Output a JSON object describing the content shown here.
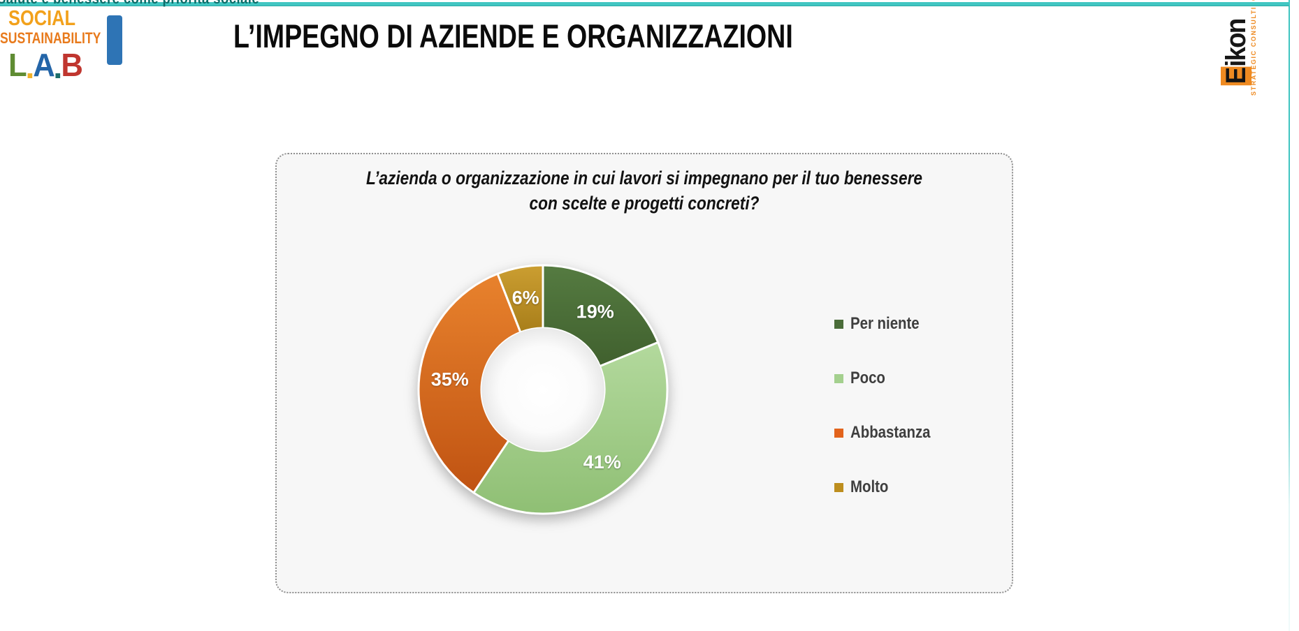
{
  "top_strip": {
    "clipped_text": "Salute e benessere come priorità sociale"
  },
  "header": {
    "title": "L’IMPEGNO DI AZIENDE E ORGANIZZAZIONI"
  },
  "logo_lab": {
    "line1": "SOCIAL",
    "line2": "SUSTAINABILITY",
    "line3_letters": [
      {
        "ch": "L",
        "color": "#5f8c33"
      },
      {
        "ch": "A",
        "color": "#2465a8"
      },
      {
        "ch": "B",
        "color": "#c0362f"
      }
    ],
    "line3_dots": [
      "#f0b12a",
      "#1c6e6b"
    ]
  },
  "logo_eikon": {
    "brand_first_letter": "E",
    "brand_rest": "ikon",
    "tagline": "STRATEGIC CONSULTING",
    "accent_color": "#ee8a21"
  },
  "card": {
    "question_line1": "L’azienda o organizzazione in cui lavori si impegnano per il tuo benessere",
    "question_line2": "con scelte e progetti concreti?"
  },
  "chart_data": {
    "type": "pie",
    "donut": true,
    "title": "L’azienda o organizzazione in cui lavori si impegnano per il tuo benessere con scelte e progetti concreti?",
    "categories": [
      "Per niente",
      "Poco",
      "Abbastanza",
      "Molto"
    ],
    "values": [
      19,
      41,
      35,
      6
    ],
    "value_labels": [
      "19%",
      "41%",
      "35%",
      "6%"
    ],
    "colors": [
      "#4a6c39",
      "#a4d08e",
      "#d5691f",
      "#bf9229"
    ],
    "segment_gradients": [
      [
        "#557b41",
        "#40602e"
      ],
      [
        "#b3d99d",
        "#8fbf74"
      ],
      [
        "#e8822d",
        "#c05312"
      ],
      [
        "#cb9e31",
        "#a87e1a"
      ]
    ],
    "legend_colors": [
      "#4a6c39",
      "#a4d08e",
      "#e2631c",
      "#bd8e1e"
    ],
    "legend_position": "right",
    "start_angle_deg": 0,
    "direction": "clockwise",
    "label_color": "#ffffff"
  }
}
